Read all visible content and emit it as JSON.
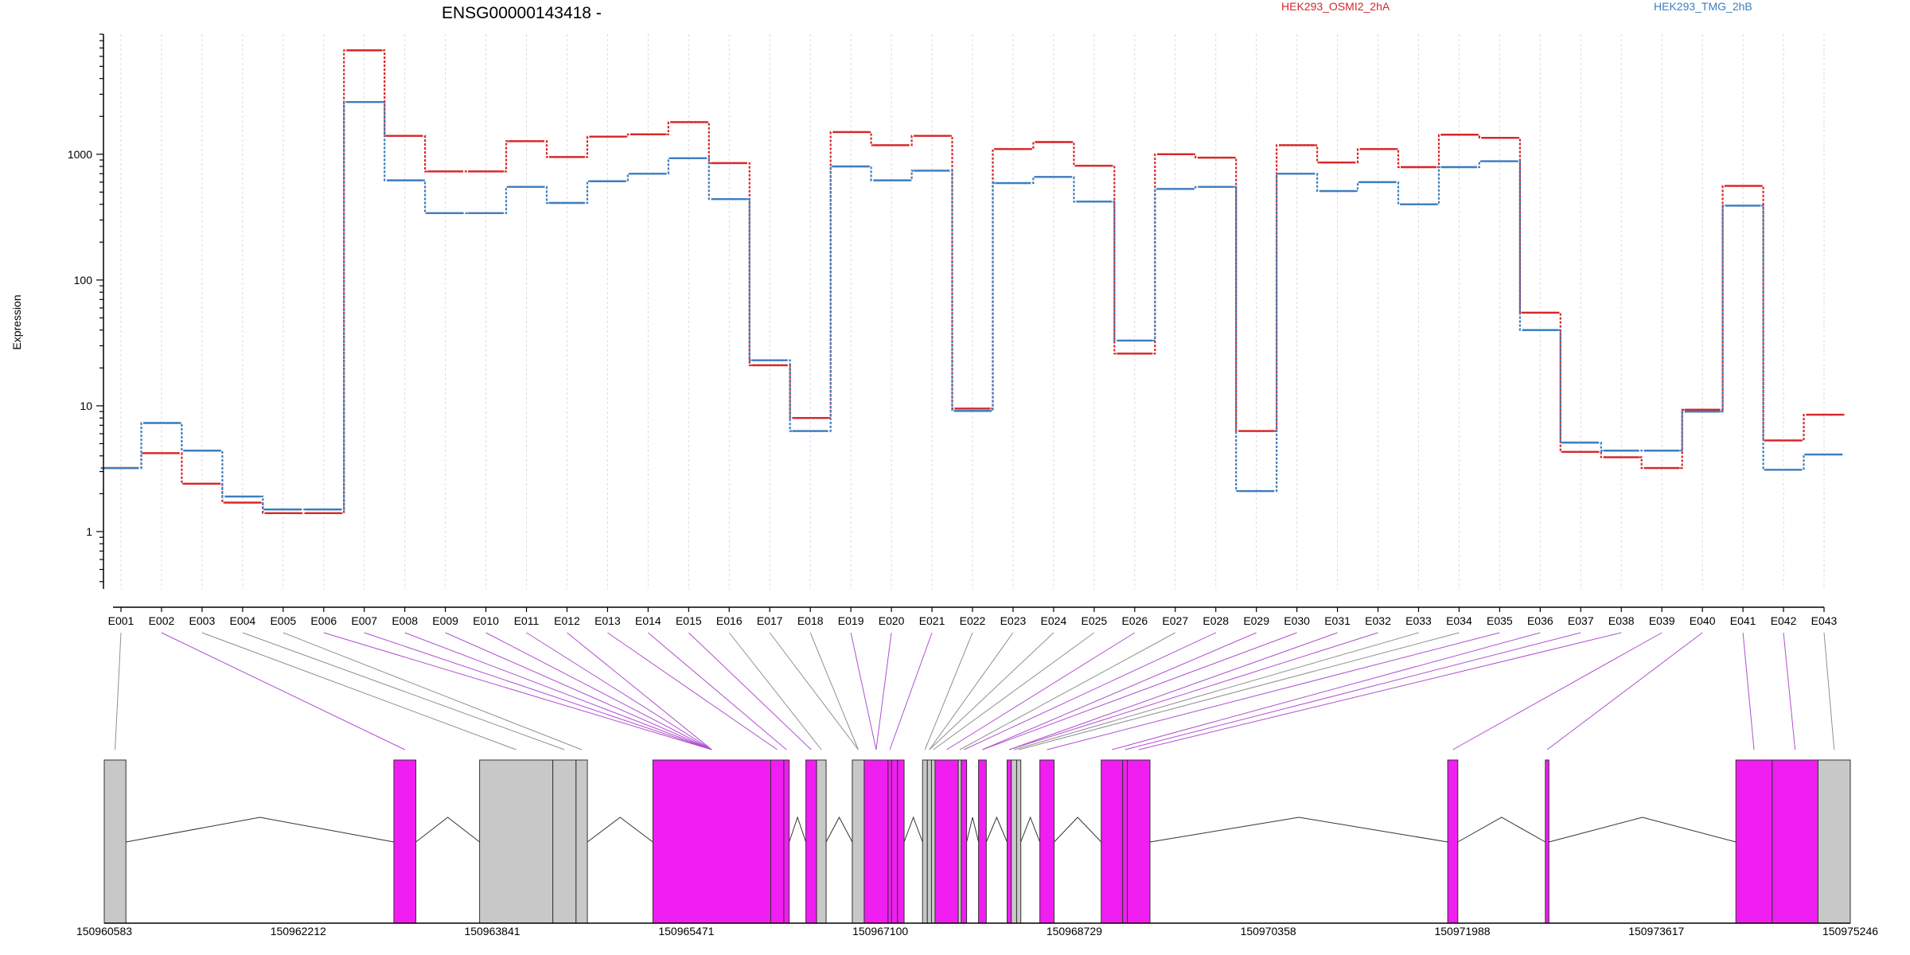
{
  "chart_data": {
    "type": "line",
    "title": "ENSG00000143418 -",
    "ylabel": "Expression",
    "xlabel": "",
    "y_scale": "log",
    "yticks": [
      "1",
      "10",
      "100",
      "1000"
    ],
    "ylim": [
      0.35,
      9000
    ],
    "grid": "vertical dotted lines at exon bins",
    "categories": [
      "E001",
      "E002",
      "E003",
      "E004",
      "E005",
      "E006",
      "E007",
      "E008",
      "E009",
      "E010",
      "E011",
      "E012",
      "E013",
      "E014",
      "E015",
      "E016",
      "E017",
      "E018",
      "E019",
      "E020",
      "E021",
      "E022",
      "E023",
      "E024",
      "E025",
      "E026",
      "E027",
      "E028",
      "E029",
      "E030",
      "E031",
      "E032",
      "E033",
      "E034",
      "E035",
      "E036",
      "E037",
      "E038",
      "E039",
      "E040",
      "E041",
      "E042",
      "E043"
    ],
    "series": [
      {
        "name": "HEK293_OSMI2_2hA",
        "color": "#d62728",
        "values": [
          3.2,
          4.2,
          2.4,
          1.7,
          1.4,
          1.4,
          6700,
          1400,
          730,
          730,
          1270,
          950,
          1380,
          1440,
          1800,
          850,
          21,
          8,
          1500,
          1180,
          1400,
          9.5,
          1100,
          1250,
          810,
          26,
          1000,
          940,
          6.3,
          1180,
          860,
          1100,
          790,
          1430,
          1350,
          55,
          4.3,
          3.9,
          3.2,
          9.3,
          560,
          5.3,
          8.5
        ]
      },
      {
        "name": "HEK293_TMG_2hB",
        "color": "#3d7ebf",
        "values": [
          3.2,
          7.3,
          4.4,
          1.9,
          1.5,
          1.5,
          2600,
          620,
          340,
          340,
          550,
          410,
          610,
          700,
          930,
          440,
          23,
          6.3,
          800,
          620,
          740,
          9.1,
          590,
          660,
          420,
          33,
          530,
          550,
          2.1,
          700,
          510,
          600,
          400,
          790,
          880,
          40,
          5.1,
          4.4,
          4.4,
          9.0,
          390,
          3.1,
          4.1
        ]
      }
    ],
    "genomic_ticks": [
      "150960583",
      "150962212",
      "150963841",
      "150965471",
      "150967100",
      "150968729",
      "150970358",
      "150971988",
      "150973617",
      "150975246"
    ],
    "genomic_range": [
      150960583,
      150975246
    ],
    "gene_model": {
      "colors": {
        "significant": "#f01ef0",
        "normal": "#c8c8c8",
        "connector_highlight": "#b050d0",
        "connector_normal": "#909090"
      },
      "exons": [
        {
          "id": "E001",
          "start": 150960583,
          "end": 150960765,
          "highlight": false
        },
        {
          "id": "E002",
          "start": 150963015,
          "end": 150963200,
          "highlight": true
        },
        {
          "id": "E003",
          "start": 150963735,
          "end": 150964350,
          "highlight": false
        },
        {
          "id": "E004",
          "start": 150964350,
          "end": 150964545,
          "highlight": false
        },
        {
          "id": "E005",
          "start": 150964545,
          "end": 150964640,
          "highlight": false
        },
        {
          "id": "E006",
          "start": 150965190,
          "end": 150966180,
          "highlight": true
        },
        {
          "id": "E007",
          "start": 150966180,
          "end": 150966290,
          "highlight": true
        },
        {
          "id": "E008",
          "start": 150966290,
          "end": 150966335,
          "highlight": true
        },
        {
          "id": "E009",
          "start": 150966475,
          "end": 150966565,
          "highlight": true
        },
        {
          "id": "E010",
          "start": 150966565,
          "end": 150966645,
          "highlight": false
        },
        {
          "id": "E011",
          "start": 150966865,
          "end": 150966965,
          "highlight": false
        },
        {
          "id": "E012",
          "start": 150966965,
          "end": 150967165,
          "highlight": true
        },
        {
          "id": "E013",
          "start": 150967165,
          "end": 150967195,
          "highlight": true
        },
        {
          "id": "E014",
          "start": 150967195,
          "end": 150967245,
          "highlight": true
        },
        {
          "id": "E015",
          "start": 150967245,
          "end": 150967300,
          "highlight": true
        },
        {
          "id": "E016",
          "start": 150967455,
          "end": 150967495,
          "highlight": false
        },
        {
          "id": "E017",
          "start": 150967495,
          "end": 150967530,
          "highlight": false
        },
        {
          "id": "E018",
          "start": 150967530,
          "end": 150967560,
          "highlight": false
        },
        {
          "id": "E019",
          "start": 150967560,
          "end": 150967755,
          "highlight": true
        },
        {
          "id": "E020",
          "start": 150967755,
          "end": 150967780,
          "highlight": false
        },
        {
          "id": "E021",
          "start": 150967780,
          "end": 150967825,
          "highlight": true
        },
        {
          "id": "E022",
          "start": 150967925,
          "end": 150967990,
          "highlight": true
        },
        {
          "id": "E023",
          "start": 150968165,
          "end": 150968200,
          "highlight": true
        },
        {
          "id": "E024",
          "start": 150968200,
          "end": 150968245,
          "highlight": false
        },
        {
          "id": "E025",
          "start": 150968245,
          "end": 150968280,
          "highlight": false
        },
        {
          "id": "E026",
          "start": 150968440,
          "end": 150968560,
          "highlight": true
        },
        {
          "id": "E027",
          "start": 150968955,
          "end": 150969135,
          "highlight": true
        },
        {
          "id": "E028",
          "start": 150969135,
          "end": 150969175,
          "highlight": true
        },
        {
          "id": "E029",
          "start": 150969175,
          "end": 150969365,
          "highlight": true
        },
        {
          "id": "E030",
          "start": 150971865,
          "end": 150971950,
          "highlight": true
        },
        {
          "id": "E031",
          "start": 150972685,
          "end": 150972715,
          "highlight": true
        },
        {
          "id": "E032",
          "start": 150974285,
          "end": 150974590,
          "highlight": true
        },
        {
          "id": "E033",
          "start": 150974590,
          "end": 150974975,
          "highlight": true
        },
        {
          "id": "E034",
          "start": 150974975,
          "end": 150975246,
          "highlight": false
        }
      ],
      "introns": [
        [
          150960765,
          150963015
        ],
        [
          150963200,
          150963735
        ],
        [
          150964640,
          150965190
        ],
        [
          150966335,
          150966475
        ],
        [
          150966645,
          150966865
        ],
        [
          150967300,
          150967455
        ],
        [
          150967825,
          150967925
        ],
        [
          150967990,
          150968165
        ],
        [
          150968280,
          150968440
        ],
        [
          150968560,
          150968955
        ],
        [
          150969365,
          150971865
        ],
        [
          150971950,
          150972685
        ],
        [
          150972715,
          150974285
        ]
      ],
      "bin_links": [
        [
          0,
          0
        ],
        [
          1,
          1
        ],
        [
          2,
          2
        ],
        [
          3,
          3
        ],
        [
          4,
          4
        ],
        [
          5,
          5
        ],
        [
          6,
          5
        ],
        [
          7,
          5
        ],
        [
          8,
          5
        ],
        [
          9,
          5
        ],
        [
          10,
          5
        ],
        [
          11,
          5
        ],
        [
          12,
          6
        ],
        [
          13,
          7
        ],
        [
          14,
          8
        ],
        [
          15,
          9
        ],
        [
          16,
          10
        ],
        [
          17,
          10
        ],
        [
          18,
          11
        ],
        [
          19,
          11
        ],
        [
          20,
          12
        ],
        [
          21,
          15
        ],
        [
          22,
          16
        ],
        [
          23,
          16
        ],
        [
          24,
          17
        ],
        [
          25,
          18
        ],
        [
          26,
          19
        ],
        [
          27,
          20
        ],
        [
          28,
          21
        ],
        [
          29,
          21
        ],
        [
          30,
          22
        ],
        [
          31,
          22
        ],
        [
          32,
          23
        ],
        [
          33,
          24
        ],
        [
          34,
          25
        ],
        [
          35,
          26
        ],
        [
          36,
          27
        ],
        [
          37,
          28
        ],
        [
          38,
          29
        ],
        [
          39,
          30
        ],
        [
          40,
          31
        ],
        [
          41,
          32
        ],
        [
          42,
          33
        ]
      ]
    }
  }
}
